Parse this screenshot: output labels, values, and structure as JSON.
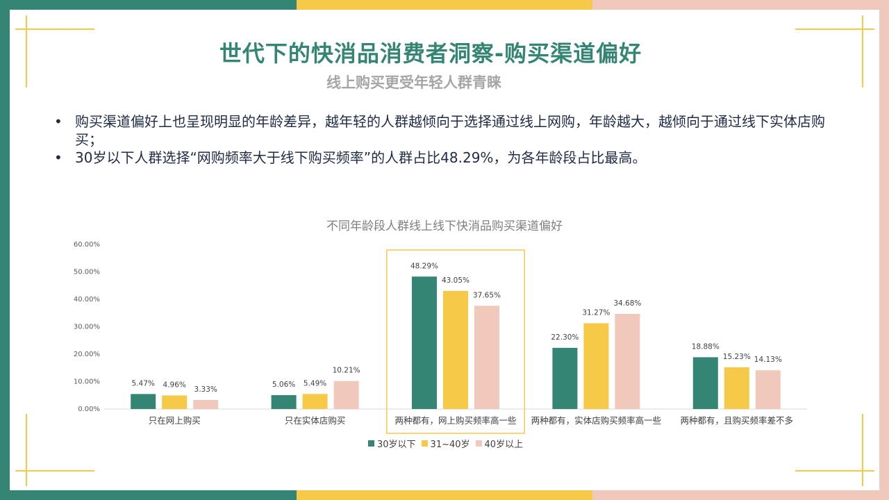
{
  "page": {
    "title": "世代下的快消品消费者洞察-购买渠道偏好",
    "subtitle": "线上购买更受年轻人群青睐",
    "bullets": [
      "购买渠道偏好上也呈现明显的年龄差异，越年轻的人群越倾向于选择通过线上网购，年龄越大，越倾向于通过线下实体店购买；",
      "30岁以下人群选择“网购频率大于线下购买频率”的人群占比48.29%，为各年龄段占比最高。"
    ],
    "bullet_symbol": "•"
  },
  "colors": {
    "teal": "#348573",
    "yellow": "#f7c948",
    "pink": "#f1c9bc"
  },
  "chart_data": {
    "type": "bar",
    "title": "不同年龄段人群线上线下快消品购买渠道偏好",
    "categories": [
      "只在网上购买",
      "只在实体店购买",
      "两种都有，网上购买频率高一些",
      "两种都有，实体店购买频率高一些",
      "两种都有，且购买频率差不多"
    ],
    "series": [
      {
        "name": "30岁以下",
        "color": "#348573",
        "values": [
          5.47,
          5.06,
          48.29,
          22.3,
          18.88
        ],
        "labels": [
          "5.47%",
          "5.06%",
          "48.29%",
          "22.30%",
          "18.88%"
        ]
      },
      {
        "name": "31~40岁",
        "color": "#f7c948",
        "values": [
          4.96,
          5.49,
          43.05,
          31.27,
          15.23
        ],
        "labels": [
          "4.96%",
          "5.49%",
          "43.05%",
          "31.27%",
          "15.23%"
        ]
      },
      {
        "name": "40岁以上",
        "color": "#f1c9bc",
        "values": [
          3.33,
          10.21,
          37.65,
          34.68,
          14.13
        ],
        "labels": [
          "3.33%",
          "10.21%",
          "37.65%",
          "34.68%",
          "14.13%"
        ]
      }
    ],
    "ylim": [
      0,
      60
    ],
    "yticks": [
      "0.00%",
      "10.00%",
      "20.00%",
      "30.00%",
      "40.00%",
      "50.00%",
      "60.00%"
    ],
    "highlight_category": 2,
    "legend_position": "bottom",
    "grid": false
  }
}
